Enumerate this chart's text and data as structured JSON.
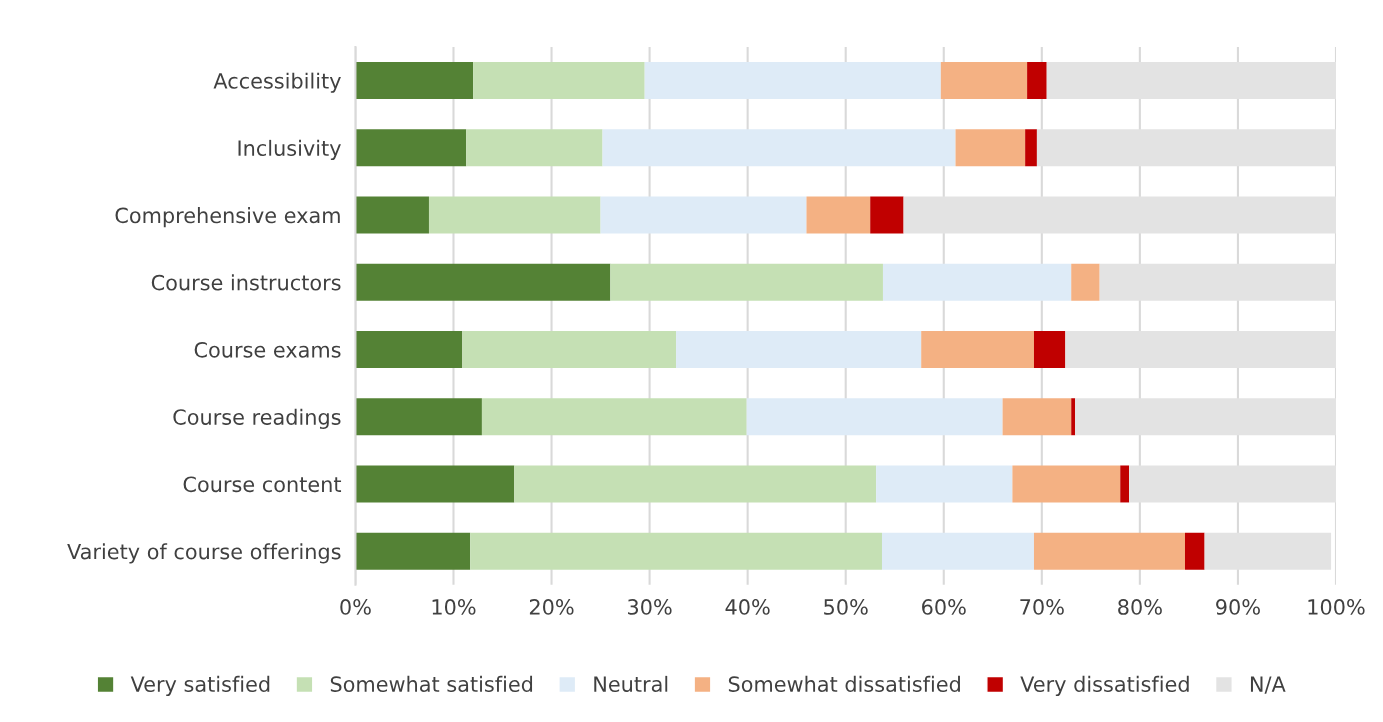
{
  "chart_data": {
    "type": "bar",
    "orientation": "horizontal",
    "stacked": true,
    "categories": [
      "Accessibility",
      "Inclusivity",
      "Comprehensive exam",
      "Course instructors",
      "Course exams",
      "Course readings",
      "Course content",
      "Variety of course offerings"
    ],
    "series": [
      {
        "name": "Very satisfied",
        "color": "#548235",
        "values": [
          12.0,
          11.3,
          7.5,
          26.0,
          10.9,
          12.9,
          16.2,
          11.7
        ]
      },
      {
        "name": "Somewhat satisfied",
        "color": "#c5e0b4",
        "values": [
          17.5,
          13.9,
          17.5,
          27.8,
          21.8,
          27.0,
          36.9,
          42.0
        ]
      },
      {
        "name": "Neutral",
        "color": "#deebf7",
        "values": [
          30.2,
          36.0,
          21.0,
          19.2,
          25.0,
          26.1,
          13.9,
          15.5
        ]
      },
      {
        "name": "Somewhat dissatisfied",
        "color": "#f4b183",
        "values": [
          8.8,
          7.1,
          6.5,
          2.9,
          11.5,
          7.0,
          11.0,
          15.4
        ]
      },
      {
        "name": "Very dissatisfied",
        "color": "#c00000",
        "values": [
          2.0,
          1.2,
          3.4,
          0,
          3.2,
          0.4,
          0.9,
          2.0
        ]
      },
      {
        "name": "N/A",
        "color": "#e3e3e3",
        "values": [
          29.5,
          30.5,
          44.1,
          24.1,
          27.6,
          26.6,
          21.1,
          12.9
        ]
      }
    ],
    "xlim": [
      0,
      100
    ],
    "xticks": [
      {
        "value": 0,
        "label": "0%"
      },
      {
        "value": 10,
        "label": "10%"
      },
      {
        "value": 20,
        "label": "20%"
      },
      {
        "value": 30,
        "label": "30%"
      },
      {
        "value": 40,
        "label": "40%"
      },
      {
        "value": 50,
        "label": "50%"
      },
      {
        "value": 60,
        "label": "60%"
      },
      {
        "value": 70,
        "label": "70%"
      },
      {
        "value": 80,
        "label": "80%"
      },
      {
        "value": 90,
        "label": "90%"
      },
      {
        "value": 100,
        "label": "100%"
      }
    ],
    "grid": "x",
    "legend": "bottom"
  }
}
